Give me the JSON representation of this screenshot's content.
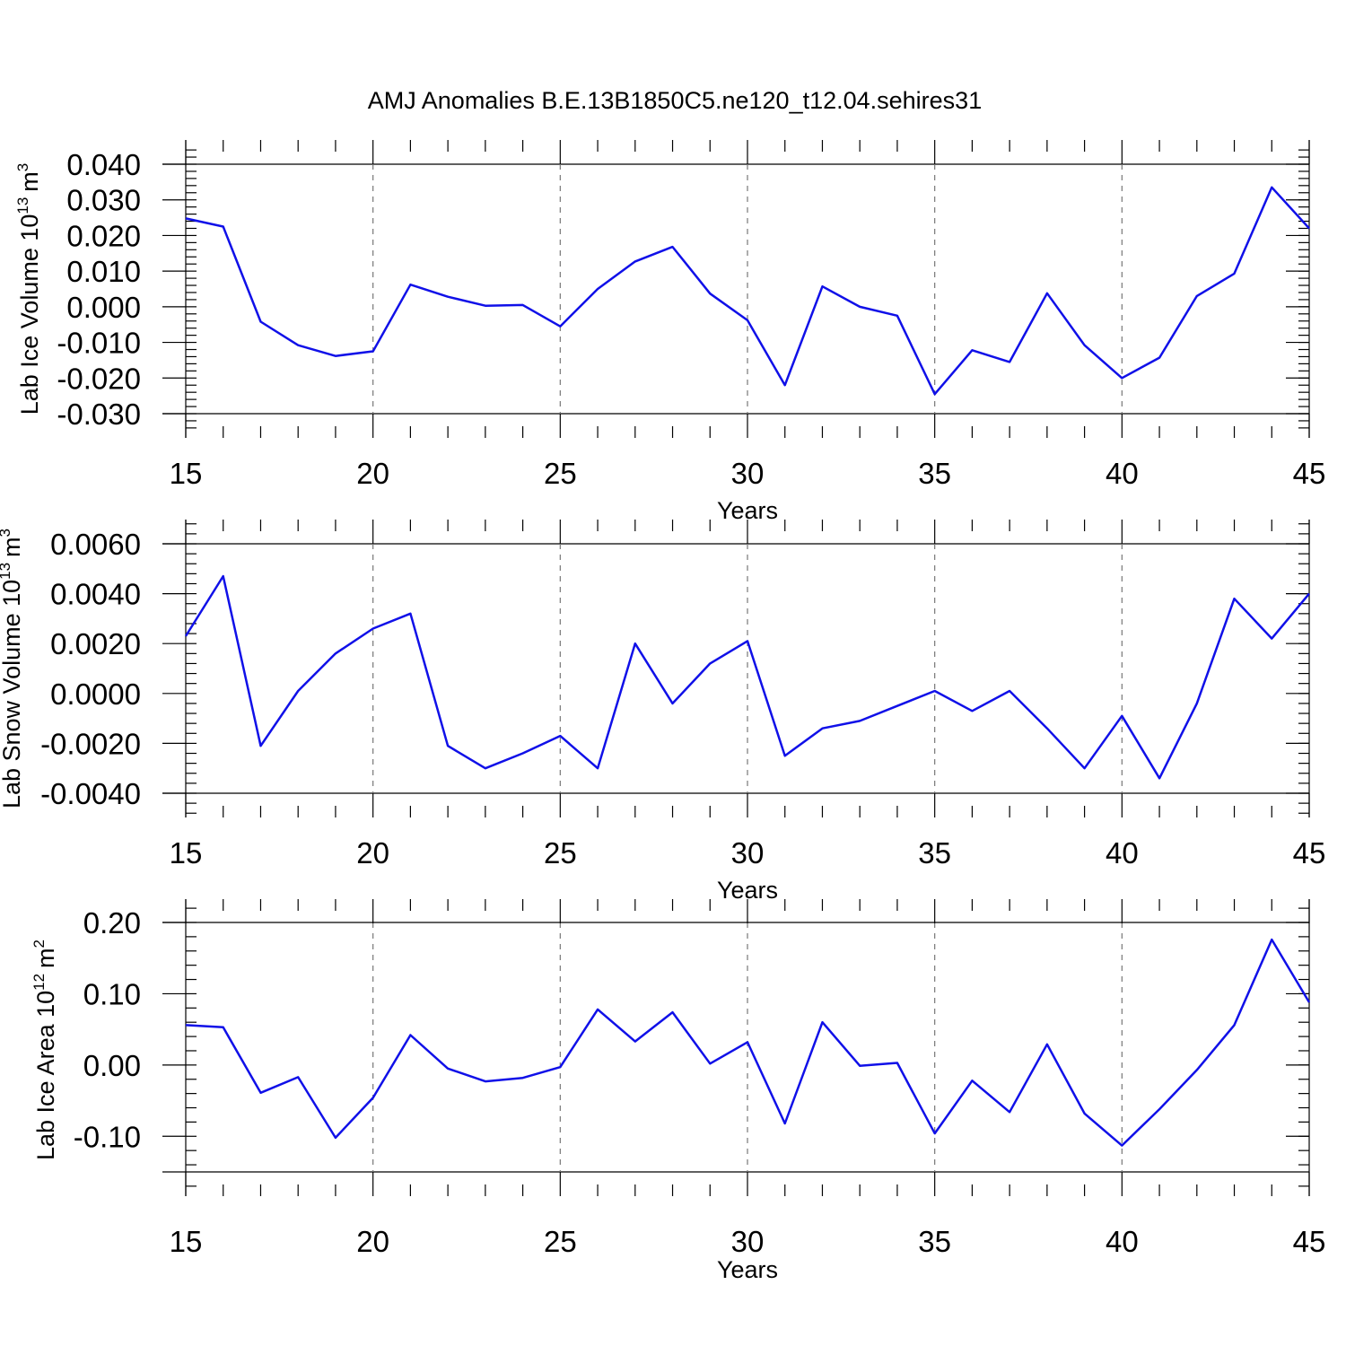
{
  "figure_title": "AMJ Anomalies B.E.13B1850C5.ne120_t12.04.sehires31",
  "line_color": "#1010e8",
  "chart_data": [
    {
      "type": "line",
      "name": "lab-ice-volume",
      "ylabel": "Lab Ice Volume",
      "ylabel_unit_base": "10",
      "ylabel_unit_exp": "13",
      "ylabel_unit_m": "m",
      "ylabel_unit_m_exp": "3",
      "xlabel": "Years",
      "xlim": [
        15,
        45
      ],
      "ylim": [
        -0.03,
        0.04
      ],
      "yticks": [
        -0.03,
        -0.02,
        -0.01,
        0.0,
        0.01,
        0.02,
        0.03,
        0.04
      ],
      "ytick_labels": [
        "-0.030",
        "-0.020",
        "-0.010",
        "0.000",
        "0.010",
        "0.020",
        "0.030",
        "0.040"
      ],
      "yminor": 0.002,
      "xticks": [
        15,
        20,
        25,
        30,
        35,
        40,
        45
      ],
      "xtick_labels": [
        "15",
        "20",
        "25",
        "30",
        "35",
        "40",
        "45"
      ],
      "x": [
        15,
        16,
        17,
        18,
        19,
        20,
        21,
        22,
        23,
        24,
        25,
        26,
        27,
        28,
        29,
        30,
        31,
        32,
        33,
        34,
        35,
        36,
        37,
        38,
        39,
        40,
        41,
        42,
        43,
        44,
        45
      ],
      "series": [
        {
          "name": "Lab Ice Volume",
          "values": [
            0.0248,
            0.0225,
            -0.0042,
            -0.0108,
            -0.0138,
            -0.0125,
            0.0062,
            0.0028,
            0.0003,
            0.0005,
            -0.0055,
            0.005,
            0.0127,
            0.0168,
            0.0037,
            -0.0038,
            -0.022,
            0.0057,
            0.0,
            -0.0025,
            -0.0245,
            -0.0122,
            -0.0155,
            0.0038,
            -0.0108,
            -0.02,
            -0.0143,
            0.003,
            0.0093,
            0.0335,
            0.022
          ]
        }
      ]
    },
    {
      "type": "line",
      "name": "lab-snow-volume",
      "ylabel": "Lab Snow Volume",
      "ylabel_unit_base": "10",
      "ylabel_unit_exp": "13",
      "ylabel_unit_m": "m",
      "ylabel_unit_m_exp": "3",
      "xlabel": "Years",
      "xlim": [
        15,
        45
      ],
      "ylim": [
        -0.004,
        0.006
      ],
      "yticks": [
        -0.004,
        -0.002,
        0.0,
        0.002,
        0.004,
        0.006
      ],
      "ytick_labels": [
        "-0.0040",
        "-0.0020",
        "0.0000",
        "0.0020",
        "0.0040",
        "0.0060"
      ],
      "yminor": 0.0004,
      "xticks": [
        15,
        20,
        25,
        30,
        35,
        40,
        45
      ],
      "xtick_labels": [
        "15",
        "20",
        "25",
        "30",
        "35",
        "40",
        "45"
      ],
      "x": [
        15,
        16,
        17,
        18,
        19,
        20,
        21,
        22,
        23,
        24,
        25,
        26,
        27,
        28,
        29,
        30,
        31,
        32,
        33,
        34,
        35,
        36,
        37,
        38,
        39,
        40,
        41,
        42,
        43,
        44,
        45
      ],
      "series": [
        {
          "name": "Lab Snow Volume",
          "values": [
            0.0023,
            0.0047,
            -0.0021,
            0.0001,
            0.0016,
            0.0026,
            0.0032,
            -0.0021,
            -0.003,
            -0.0024,
            -0.0017,
            -0.003,
            0.002,
            -0.0004,
            0.0012,
            0.0021,
            -0.0025,
            -0.0014,
            -0.0011,
            -0.0005,
            0.0001,
            -0.0007,
            0.0001,
            -0.0014,
            -0.003,
            -0.0009,
            -0.0034,
            -0.0004,
            0.0038,
            0.0022,
            0.004
          ]
        }
      ]
    },
    {
      "type": "line",
      "name": "lab-ice-area",
      "ylabel": "Lab Ice Area",
      "ylabel_unit_base": "10",
      "ylabel_unit_exp": "12",
      "ylabel_unit_m": "m",
      "ylabel_unit_m_exp": "2",
      "xlabel": "Years",
      "xlim": [
        15,
        45
      ],
      "ylim": [
        -0.15,
        0.2
      ],
      "yticks": [
        -0.1,
        0.0,
        0.1,
        0.2
      ],
      "ytick_labels": [
        "-0.10",
        "0.00",
        "0.10",
        "0.20"
      ],
      "yminor": 0.02,
      "xticks": [
        15,
        20,
        25,
        30,
        35,
        40,
        45
      ],
      "xtick_labels": [
        "15",
        "20",
        "25",
        "30",
        "35",
        "40",
        "45"
      ],
      "x": [
        15,
        16,
        17,
        18,
        19,
        20,
        21,
        22,
        23,
        24,
        25,
        26,
        27,
        28,
        29,
        30,
        31,
        32,
        33,
        34,
        35,
        36,
        37,
        38,
        39,
        40,
        41,
        42,
        43,
        44,
        45
      ],
      "series": [
        {
          "name": "Lab Ice Area",
          "values": [
            0.056,
            0.053,
            -0.039,
            -0.017,
            -0.102,
            -0.046,
            0.042,
            -0.005,
            -0.023,
            -0.018,
            -0.003,
            0.078,
            0.033,
            0.074,
            0.002,
            0.032,
            -0.082,
            0.06,
            -0.001,
            0.003,
            -0.096,
            -0.022,
            -0.066,
            0.029,
            -0.068,
            -0.113,
            -0.062,
            -0.007,
            0.056,
            0.176,
            0.088
          ]
        }
      ]
    }
  ]
}
